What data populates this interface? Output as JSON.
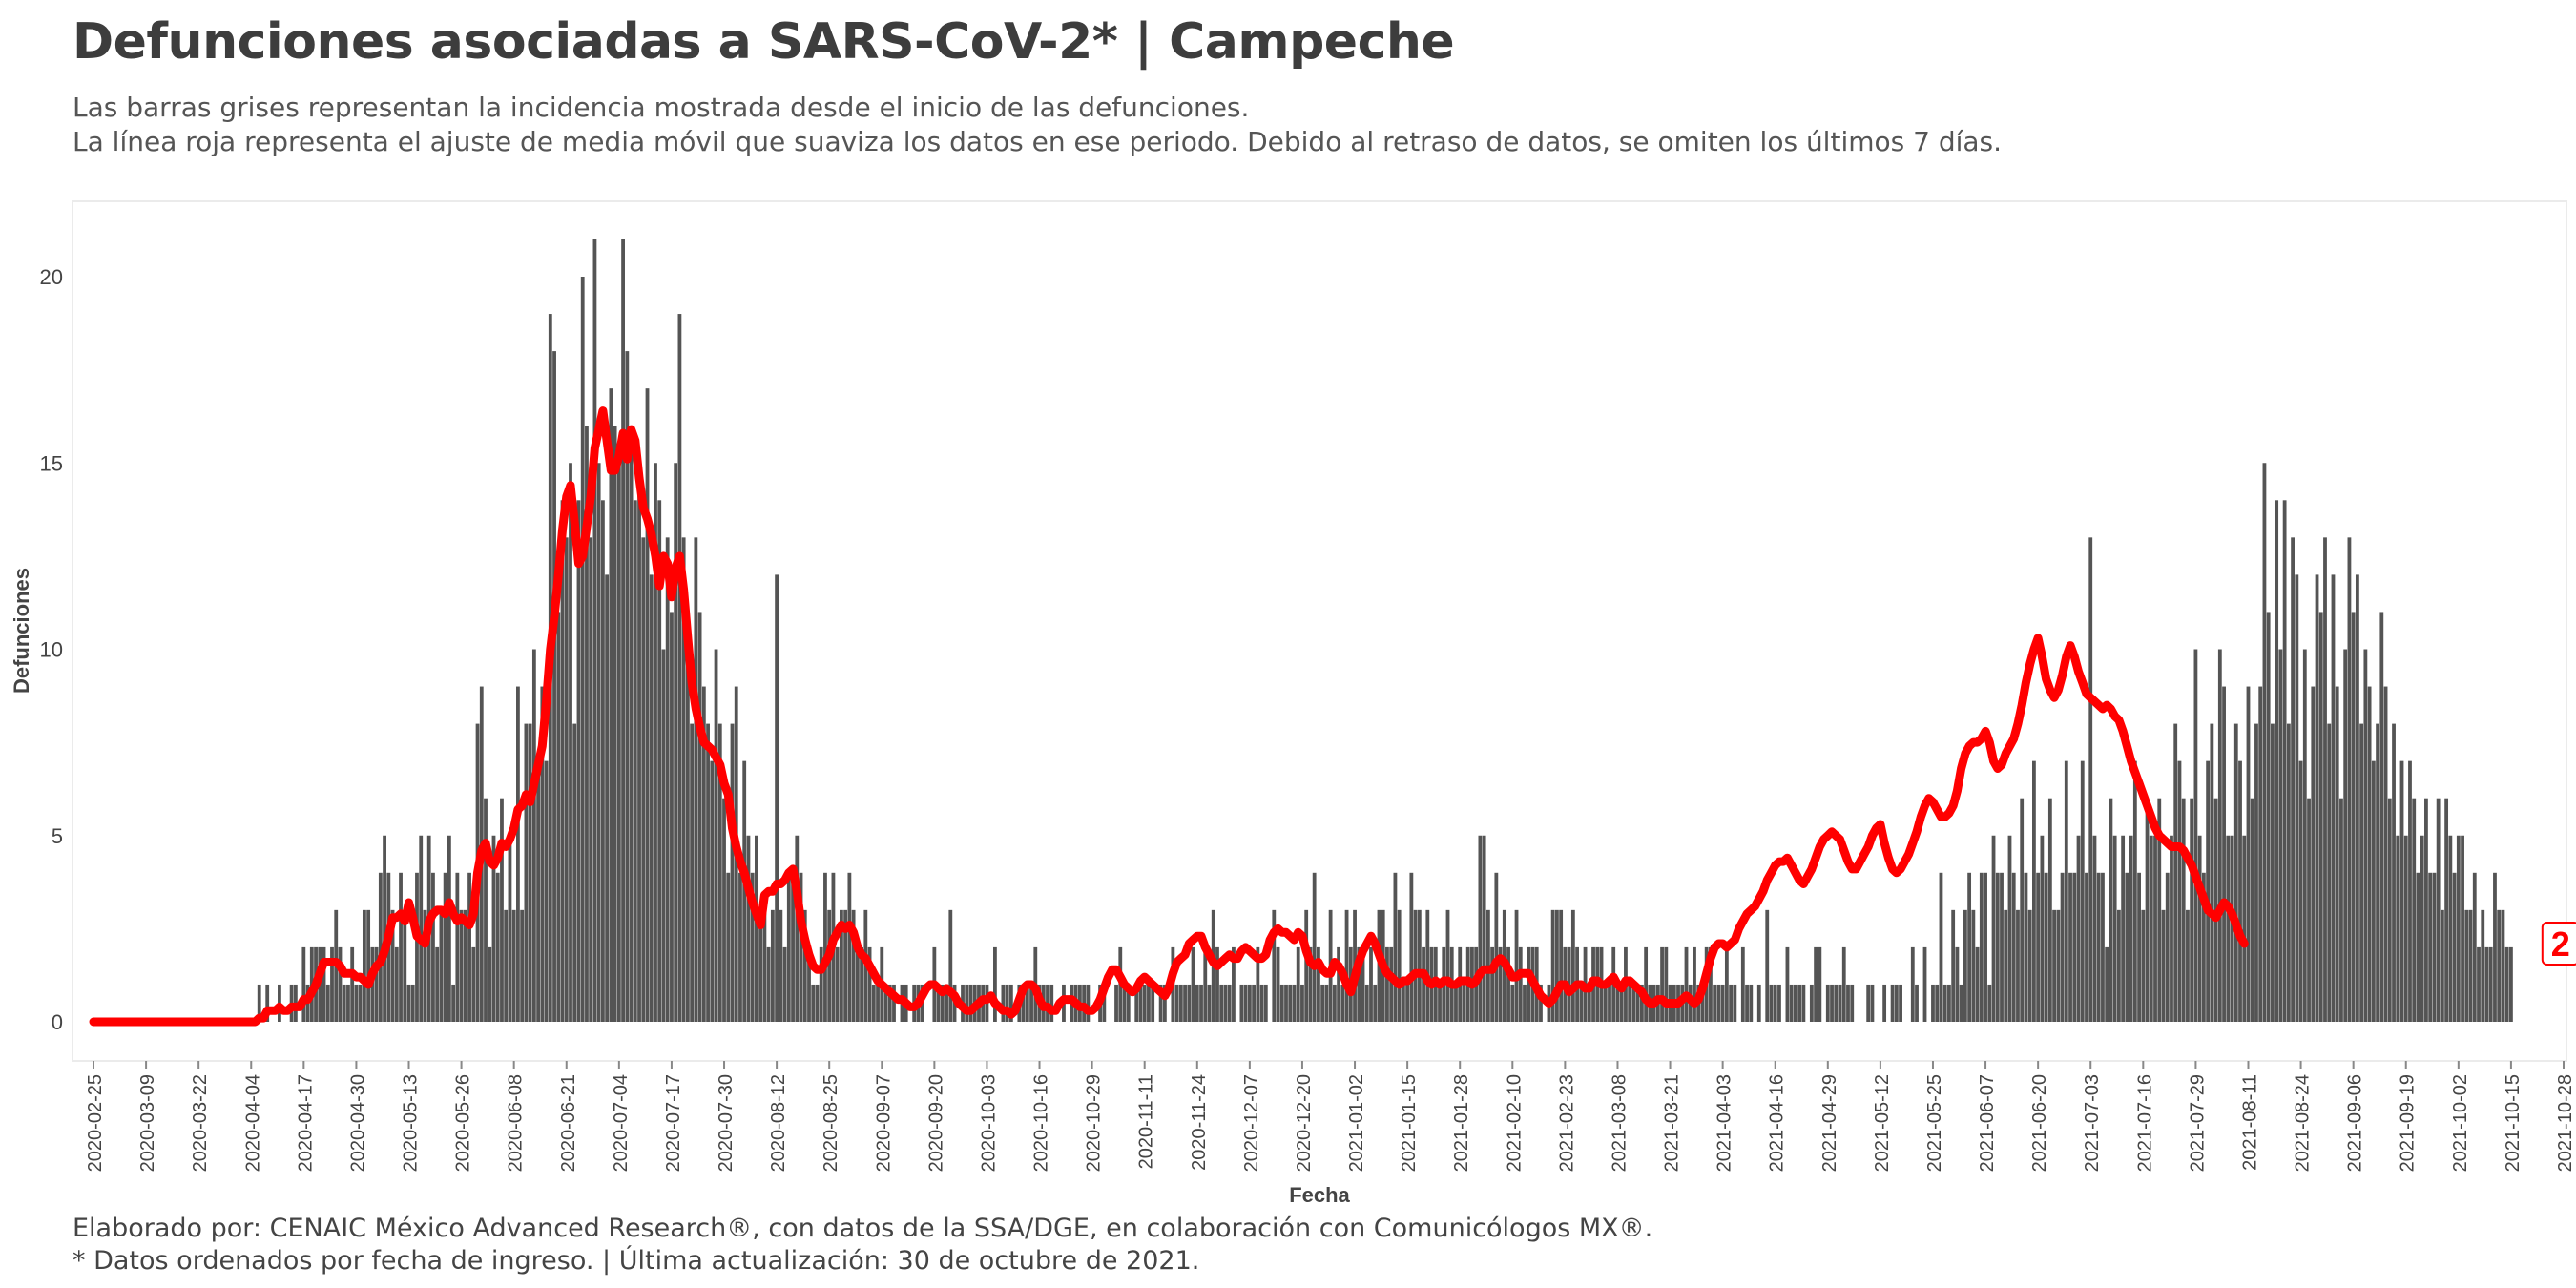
{
  "header": {
    "title": "Defunciones asociadas a SARS-CoV-2* | Campeche",
    "subtitle_line1": "Las barras grises representan la incidencia mostrada desde el inicio de las defunciones.",
    "subtitle_line2": "La línea roja representa el ajuste de media móvil que suaviza los datos en ese periodo. Debido al retraso de datos, se omiten los últimos 7 días."
  },
  "footer": {
    "line1": "Elaborado por: CENAIC México Advanced Research®, con datos de la SSA/DGE, en colaboración con Comunicólogos MX®.",
    "line2": "* Datos ordenados por fecha de ingreso. | Última actualización: 30 de octubre de 2021."
  },
  "colors": {
    "bars": "#545454",
    "line": "#ff0000",
    "text": "#444444"
  },
  "chart_data": {
    "type": "bar",
    "xlabel": "Fecha",
    "ylabel": "Defunciones",
    "x_start": "2020-02-25",
    "x_end": "2021-10-28",
    "y_range": [
      -1,
      22.5
    ],
    "y_ticks": [
      0,
      5,
      10,
      15,
      20
    ],
    "x_ticks": [
      "2020-02-25",
      "2020-03-09",
      "2020-03-22",
      "2020-04-04",
      "2020-04-17",
      "2020-04-30",
      "2020-05-13",
      "2020-05-26",
      "2020-06-08",
      "2020-06-21",
      "2020-07-04",
      "2020-07-17",
      "2020-07-30",
      "2020-08-12",
      "2020-08-25",
      "2020-09-07",
      "2020-09-20",
      "2020-10-03",
      "2020-10-16",
      "2020-10-29",
      "2020-11-11",
      "2020-11-24",
      "2020-12-07",
      "2020-12-20",
      "2021-01-02",
      "2021-01-15",
      "2021-01-28",
      "2021-02-10",
      "2021-02-23",
      "2021-03-08",
      "2021-03-21",
      "2021-04-03",
      "2021-04-16",
      "2021-04-29",
      "2021-05-12",
      "2021-05-25",
      "2021-06-07",
      "2021-06-20",
      "2021-07-03",
      "2021-07-16",
      "2021-07-29",
      "2021-08-11",
      "2021-08-24",
      "2021-09-06",
      "2021-09-19",
      "2021-10-02",
      "2021-10-15",
      "2021-10-28"
    ],
    "grid": false,
    "legend": "none",
    "series": [
      {
        "name": "Defunciones diarias",
        "type": "bar",
        "start_date": "2020-02-25",
        "values": [
          0,
          0,
          0,
          0,
          0,
          0,
          0,
          0,
          0,
          0,
          0,
          0,
          0,
          0,
          0,
          0,
          0,
          0,
          0,
          0,
          0,
          0,
          0,
          0,
          0,
          0,
          0,
          0,
          0,
          0,
          0,
          0,
          0,
          0,
          0,
          0,
          0,
          0,
          0,
          0,
          0,
          1,
          0,
          1,
          0,
          0,
          1,
          0,
          0,
          1,
          1,
          0,
          2,
          1,
          2,
          2,
          2,
          2,
          1,
          2,
          3,
          2,
          1,
          1,
          2,
          1,
          1,
          3,
          3,
          2,
          2,
          4,
          5,
          4,
          3,
          2,
          4,
          3,
          1,
          1,
          4,
          5,
          3,
          5,
          4,
          2,
          3,
          4,
          5,
          1,
          4,
          3,
          3,
          4,
          2,
          8,
          9,
          6,
          2,
          5,
          4,
          6,
          3,
          5,
          3,
          9,
          3,
          8,
          8,
          10,
          7,
          9,
          7,
          19,
          18,
          11,
          14,
          13,
          15,
          8,
          14,
          20,
          16,
          13,
          21,
          15,
          14,
          12,
          17,
          16,
          15,
          21,
          18,
          16,
          14,
          15,
          13,
          17,
          12,
          15,
          14,
          10,
          13,
          11,
          15,
          19,
          13,
          10,
          8,
          13,
          11,
          9,
          8,
          7,
          10,
          8,
          6,
          4,
          8,
          9,
          4,
          7,
          5,
          4,
          5,
          3,
          3,
          2,
          3,
          12,
          3,
          2,
          4,
          4,
          5,
          4,
          3,
          2,
          1,
          1,
          2,
          4,
          3,
          4,
          2,
          3,
          3,
          4,
          3,
          2,
          2,
          3,
          2,
          1,
          1,
          2,
          1,
          1,
          1,
          0,
          1,
          1,
          0,
          1,
          1,
          1,
          0,
          0,
          2,
          1,
          1,
          1,
          3,
          1,
          0,
          1,
          1,
          1,
          1,
          1,
          1,
          1,
          0,
          2,
          0,
          1,
          1,
          1,
          0,
          1,
          1,
          1,
          1,
          2,
          1,
          1,
          1,
          1,
          0,
          0,
          1,
          0,
          1,
          1,
          1,
          1,
          1,
          0,
          0,
          1,
          1,
          0,
          0,
          1,
          2,
          1,
          1,
          0,
          1,
          1,
          1,
          1,
          1,
          0,
          1,
          1,
          0,
          2,
          1,
          1,
          1,
          1,
          2,
          1,
          1,
          2,
          1,
          3,
          2,
          1,
          1,
          1,
          2,
          0,
          1,
          1,
          1,
          1,
          2,
          1,
          1,
          0,
          3,
          2,
          1,
          1,
          1,
          1,
          2,
          1,
          3,
          2,
          4,
          2,
          1,
          1,
          3,
          1,
          2,
          1,
          3,
          2,
          3,
          2,
          2,
          1,
          2,
          1,
          3,
          3,
          2,
          2,
          4,
          3,
          1,
          1,
          4,
          3,
          3,
          2,
          3,
          2,
          2,
          1,
          2,
          3,
          2,
          1,
          2,
          1,
          2,
          2,
          2,
          5,
          5,
          3,
          2,
          4,
          2,
          3,
          2,
          1,
          3,
          2,
          1,
          2,
          2,
          2,
          1,
          0,
          1,
          3,
          3,
          3,
          2,
          2,
          3,
          2,
          1,
          2,
          1,
          2,
          2,
          2,
          1,
          1,
          2,
          1,
          1,
          2,
          1,
          1,
          1,
          1,
          2,
          1,
          1,
          1,
          2,
          2,
          1,
          1,
          1,
          1,
          2,
          1,
          2,
          1,
          1,
          2,
          2,
          1,
          1,
          1,
          2,
          1,
          1,
          0,
          2,
          1,
          1,
          0,
          1,
          0,
          3,
          1,
          1,
          1,
          0,
          2,
          1,
          1,
          1,
          1,
          0,
          1,
          2,
          2,
          0,
          1,
          1,
          1,
          1,
          2,
          1,
          1,
          0,
          0,
          0,
          1,
          1,
          0,
          0,
          1,
          0,
          1,
          1,
          1,
          0,
          0,
          2,
          1,
          0,
          2,
          0,
          1,
          1,
          4,
          1,
          1,
          3,
          2,
          1,
          3,
          4,
          3,
          2,
          4,
          4,
          1,
          5,
          4,
          4,
          3,
          5,
          4,
          3,
          6,
          4,
          3,
          7,
          4,
          5,
          4,
          6,
          3,
          3,
          4,
          7,
          4,
          4,
          5,
          7,
          4,
          13,
          5,
          4,
          4,
          2,
          6,
          5,
          3,
          5,
          4,
          5,
          7,
          4,
          3,
          6,
          5,
          5,
          6,
          3,
          4,
          5,
          8,
          7,
          6,
          3,
          6,
          10,
          5,
          4,
          7,
          8,
          6,
          10,
          9,
          5,
          5,
          8,
          7,
          5,
          9,
          6,
          8,
          9,
          15,
          11,
          8,
          14,
          10,
          14,
          8,
          13,
          12,
          7,
          10,
          6,
          9,
          12,
          11,
          13,
          8,
          12,
          9,
          6,
          10,
          13,
          11,
          12,
          8,
          10,
          9,
          7,
          8,
          11,
          9,
          6,
          8,
          5,
          7,
          5,
          7,
          6,
          4,
          5,
          6,
          4,
          4,
          6,
          3,
          6,
          5,
          4,
          5,
          5,
          3,
          3,
          4,
          2,
          3,
          2,
          2,
          4,
          3,
          3,
          2,
          2
        ]
      },
      {
        "name": "Media móvil",
        "type": "line",
        "start_date": "2020-02-25",
        "end_date": "2021-10-23",
        "values": [
          0,
          0,
          0,
          0,
          0,
          0,
          0,
          0,
          0,
          0,
          0,
          0,
          0,
          0,
          0,
          0,
          0,
          0,
          0,
          0,
          0,
          0,
          0,
          0,
          0,
          0,
          0,
          0,
          0,
          0,
          0,
          0,
          0,
          0,
          0,
          0,
          0,
          0,
          0,
          0,
          0,
          0.1,
          0.1,
          0.3,
          0.3,
          0.3,
          0.4,
          0.3,
          0.3,
          0.4,
          0.4,
          0.4,
          0.6,
          0.6,
          0.8,
          1.0,
          1.3,
          1.6,
          1.6,
          1.6,
          1.6,
          1.5,
          1.3,
          1.3,
          1.3,
          1.2,
          1.2,
          1.1,
          1.0,
          1.3,
          1.5,
          1.6,
          1.9,
          2.3,
          2.8,
          2.8,
          2.9,
          2.7,
          3.2,
          2.8,
          2.3,
          2.2,
          2.1,
          2.7,
          2.9,
          3.0,
          3.0,
          2.9,
          3.2,
          2.9,
          2.7,
          2.8,
          2.7,
          2.6,
          2.9,
          4.0,
          4.6,
          4.8,
          4.3,
          4.2,
          4.4,
          4.8,
          4.7,
          4.9,
          5.2,
          5.7,
          5.8,
          6.1,
          5.9,
          6.4,
          6.9,
          7.4,
          8.6,
          10.0,
          10.9,
          12.0,
          13.2,
          14.1,
          14.4,
          13.4,
          12.3,
          12.5,
          13.3,
          14.1,
          15.4,
          15.9,
          16.4,
          15.6,
          14.8,
          14.8,
          15.2,
          15.8,
          15.1,
          15.9,
          15.6,
          14.6,
          13.8,
          13.5,
          13.1,
          12.5,
          11.7,
          12.5,
          12.3,
          11.4,
          12.2,
          12.5,
          11.6,
          10.3,
          9.1,
          8.4,
          7.9,
          7.5,
          7.4,
          7.3,
          7.1,
          6.9,
          6.4,
          6.1,
          5.2,
          4.7,
          4.3,
          4.0,
          3.6,
          3.2,
          2.9,
          2.6,
          3.4,
          3.5,
          3.5,
          3.7,
          3.7,
          3.8,
          4.0,
          4.1,
          3.5,
          2.7,
          2.2,
          1.8,
          1.5,
          1.4,
          1.4,
          1.6,
          1.8,
          2.2,
          2.4,
          2.6,
          2.5,
          2.6,
          2.4,
          2.0,
          1.8,
          1.7,
          1.5,
          1.3,
          1.1,
          1.0,
          0.9,
          0.8,
          0.7,
          0.6,
          0.6,
          0.5,
          0.4,
          0.4,
          0.5,
          0.7,
          0.9,
          1.0,
          1.0,
          0.9,
          0.8,
          0.9,
          0.8,
          0.7,
          0.5,
          0.4,
          0.3,
          0.3,
          0.4,
          0.5,
          0.6,
          0.6,
          0.7,
          0.5,
          0.4,
          0.3,
          0.3,
          0.2,
          0.3,
          0.6,
          0.9,
          1.0,
          1.0,
          0.9,
          0.6,
          0.4,
          0.4,
          0.3,
          0.3,
          0.5,
          0.6,
          0.6,
          0.6,
          0.5,
          0.4,
          0.4,
          0.3,
          0.3,
          0.4,
          0.6,
          0.9,
          1.2,
          1.4,
          1.4,
          1.2,
          1.0,
          0.9,
          0.8,
          0.9,
          1.1,
          1.2,
          1.1,
          1.0,
          0.9,
          0.8,
          0.7,
          0.9,
          1.3,
          1.6,
          1.7,
          1.8,
          2.1,
          2.2,
          2.3,
          2.3,
          2.0,
          1.8,
          1.6,
          1.5,
          1.6,
          1.7,
          1.8,
          1.7,
          1.7,
          1.9,
          2.0,
          1.9,
          1.8,
          1.7,
          1.7,
          1.8,
          2.2,
          2.4,
          2.5,
          2.4,
          2.4,
          2.3,
          2.2,
          2.4,
          2.3,
          1.9,
          1.6,
          1.5,
          1.6,
          1.4,
          1.3,
          1.3,
          1.6,
          1.5,
          1.3,
          1.0,
          0.8,
          1.2,
          1.6,
          1.9,
          2.1,
          2.3,
          2.1,
          1.8,
          1.5,
          1.3,
          1.2,
          1.1,
          1.0,
          1.1,
          1.1,
          1.2,
          1.3,
          1.3,
          1.3,
          1.1,
          1.0,
          1.1,
          1.0,
          1.1,
          1.1,
          1.0,
          1.0,
          1.1,
          1.1,
          1.1,
          1.0,
          1.1,
          1.3,
          1.4,
          1.4,
          1.4,
          1.6,
          1.7,
          1.6,
          1.4,
          1.2,
          1.2,
          1.3,
          1.3,
          1.3,
          1.1,
          0.9,
          0.7,
          0.6,
          0.5,
          0.6,
          0.8,
          1.0,
          1.0,
          0.8,
          0.9,
          1.0,
          1.0,
          0.9,
          0.9,
          1.1,
          1.1,
          1.0,
          1.0,
          1.1,
          1.2,
          1.0,
          0.9,
          1.1,
          1.1,
          1.0,
          0.9,
          0.8,
          0.6,
          0.5,
          0.5,
          0.6,
          0.6,
          0.5,
          0.5,
          0.5,
          0.5,
          0.6,
          0.7,
          0.6,
          0.5,
          0.6,
          0.9,
          1.3,
          1.7,
          2.0,
          2.1,
          2.1,
          2.0,
          2.1,
          2.2,
          2.5,
          2.7,
          2.9,
          3.0,
          3.1,
          3.3,
          3.5,
          3.8,
          4.0,
          4.2,
          4.3,
          4.3,
          4.4,
          4.2,
          4.0,
          3.8,
          3.7,
          3.9,
          4.1,
          4.4,
          4.7,
          4.9,
          5.0,
          5.1,
          5.0,
          4.9,
          4.6,
          4.3,
          4.1,
          4.1,
          4.3,
          4.5,
          4.7,
          5.0,
          5.2,
          5.3,
          4.8,
          4.4,
          4.1,
          4.0,
          4.1,
          4.3,
          4.5,
          4.8,
          5.1,
          5.5,
          5.8,
          6.0,
          5.9,
          5.7,
          5.5,
          5.5,
          5.6,
          5.8,
          6.2,
          6.8,
          7.2,
          7.4,
          7.5,
          7.5,
          7.6,
          7.8,
          7.5,
          7.0,
          6.8,
          6.9,
          7.2,
          7.4,
          7.6,
          8.0,
          8.5,
          9.1,
          9.6,
          10.0,
          10.3,
          9.8,
          9.2,
          8.9,
          8.7,
          8.9,
          9.3,
          9.8,
          10.1,
          9.8,
          9.4,
          9.1,
          8.8,
          8.7,
          8.6,
          8.5,
          8.4,
          8.5,
          8.4,
          8.2,
          8.1,
          7.8,
          7.4,
          7.0,
          6.7,
          6.4,
          6.1,
          5.8,
          5.5,
          5.2,
          5.0,
          4.9,
          4.8,
          4.7,
          4.7,
          4.7,
          4.6,
          4.4,
          4.2,
          3.9,
          3.6,
          3.3,
          3.0,
          2.9,
          2.8,
          3.0,
          3.2,
          3.1,
          2.9,
          2.6,
          2.3,
          2.1
        ]
      }
    ],
    "annotation": {
      "label": "2",
      "date": "2021-10-23",
      "value": 2.1
    }
  }
}
